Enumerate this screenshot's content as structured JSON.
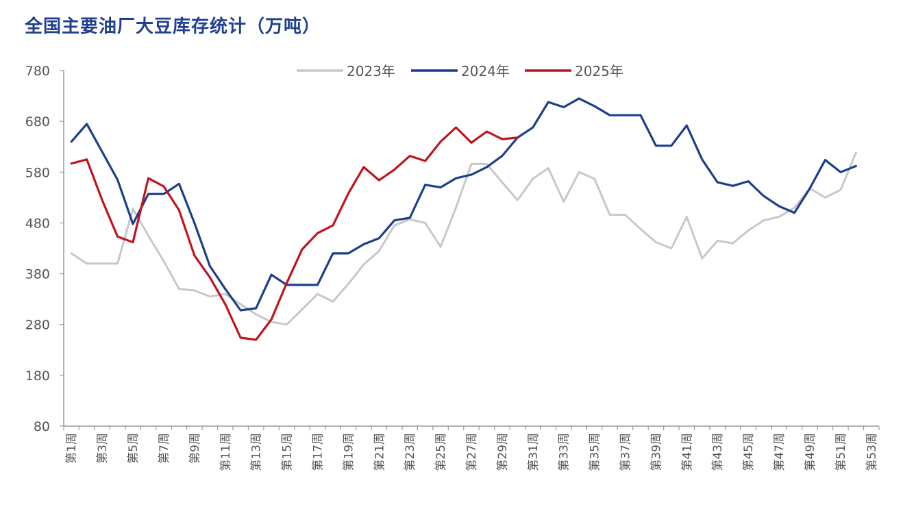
{
  "chart_data": {
    "type": "line",
    "title": "全国主要油厂大豆库存统计（万吨）",
    "xlabel": "",
    "ylabel": "",
    "ylim": [
      80,
      780
    ],
    "yticks": [
      80,
      180,
      280,
      380,
      480,
      580,
      680,
      780
    ],
    "x_tick_labels": [
      "第1周",
      "第3周",
      "第5周",
      "第7周",
      "第9周",
      "第11周",
      "第13周",
      "第15周",
      "第17周",
      "第19周",
      "第21周",
      "第23周",
      "第25周",
      "第27周",
      "第29周",
      "第31周",
      "第33周",
      "第35周",
      "第37周",
      "第39周",
      "第41周",
      "第43周",
      "第45周",
      "第47周",
      "第49周",
      "第51周",
      "第53周"
    ],
    "x_weeks": 53,
    "legend_position": "top-center",
    "grid": false,
    "series": [
      {
        "name": "2023年",
        "color": "#c8c8c8",
        "values": [
          420,
          400,
          400,
          400,
          508,
          455,
          405,
          350,
          347,
          335,
          340,
          320,
          300,
          285,
          280,
          310,
          340,
          325,
          360,
          398,
          425,
          475,
          487,
          480,
          433,
          510,
          596,
          596,
          560,
          525,
          567,
          588,
          522,
          580,
          567,
          496,
          496,
          468,
          442,
          430,
          492,
          410,
          445,
          440,
          465,
          485,
          492,
          510,
          548,
          530,
          545,
          618,
          null
        ]
      },
      {
        "name": "2024年",
        "color": "#1b3f8b",
        "values": [
          640,
          675,
          620,
          565,
          478,
          537,
          537,
          557,
          480,
          395,
          350,
          308,
          312,
          378,
          358,
          358,
          358,
          420,
          420,
          438,
          450,
          485,
          490,
          555,
          550,
          568,
          575,
          590,
          612,
          648,
          668,
          718,
          708,
          725,
          710,
          692,
          692,
          692,
          632,
          632,
          672,
          605,
          560,
          553,
          562,
          533,
          513,
          500,
          548,
          604,
          580,
          592,
          null
        ]
      },
      {
        "name": "2025年",
        "color": "#c0141d",
        "values": [
          597,
          605,
          525,
          453,
          442,
          568,
          552,
          505,
          416,
          373,
          320,
          254,
          250,
          290,
          362,
          428,
          460,
          475,
          538,
          590,
          564,
          585,
          612,
          602,
          640,
          668,
          638,
          660,
          645,
          648,
          null,
          null,
          null,
          null,
          null,
          null,
          null,
          null,
          null,
          null,
          null,
          null,
          null,
          null,
          null,
          null,
          null,
          null,
          null,
          null,
          null,
          null,
          null
        ]
      }
    ]
  }
}
